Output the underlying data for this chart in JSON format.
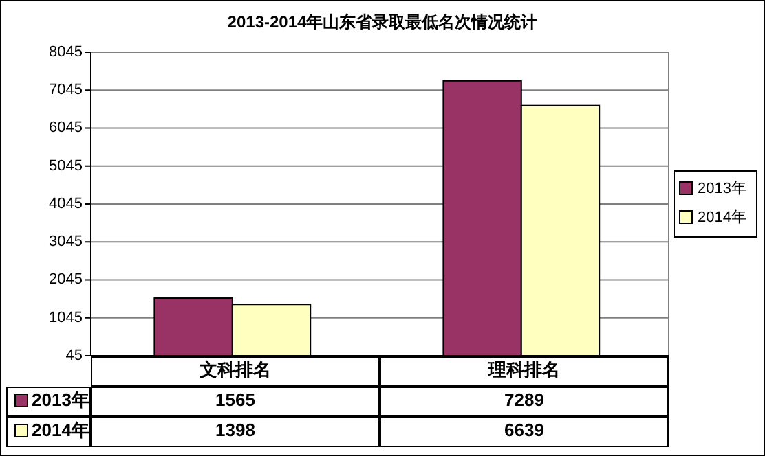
{
  "chart_data": {
    "type": "bar",
    "title": "2013-2014年山东省录取最低名次情况统计",
    "categories": [
      "文科排名",
      "理科排名"
    ],
    "series": [
      {
        "name": "2013年",
        "color": "#993366",
        "values": [
          1565,
          7289
        ]
      },
      {
        "name": "2014年",
        "color": "#ffffc0",
        "values": [
          1398,
          6639
        ]
      }
    ],
    "ylim": [
      45,
      8045
    ],
    "yticks": [
      45,
      1045,
      2045,
      3045,
      4045,
      5045,
      6045,
      7045,
      8045
    ],
    "grid": "y",
    "legend": "right",
    "data_labels": true
  }
}
